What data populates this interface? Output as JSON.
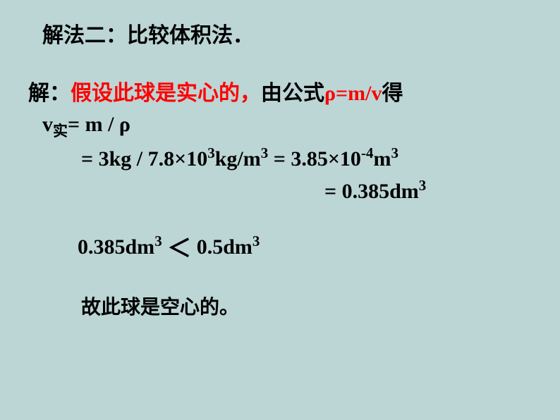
{
  "title": "解法二：比较体积法．",
  "line1_prefix": "解：",
  "line1_red": "假设此球是实心的，",
  "line1_mid": "由公式",
  "line1_formula": "ρ=m/v",
  "line1_end": "得",
  "line2_v": "v",
  "line2_sub": "实",
  "line2_rest": "= m / ρ",
  "line3_a": "= 3kg  /  7.8×10",
  "line3_exp1": "3",
  "line3_b": "kg/m",
  "line3_exp2": "3",
  "line3_c": " = 3.85×10",
  "line3_exp3": "-4",
  "line3_d": "m",
  "line3_exp4": "3",
  "line4_a": "= 0.385dm",
  "line4_exp": "3",
  "line5_a": "0.385dm",
  "line5_exp1": "3",
  "line5_lt": "＜",
  "line5_b": "  0.5dm",
  "line5_exp2": "3",
  "line6": "故此球是空心的。",
  "colors": {
    "background": "#bcd5d5",
    "text": "#000000",
    "highlight": "#ff0000"
  },
  "fontsize_main": 30,
  "fontsize_small": 28
}
